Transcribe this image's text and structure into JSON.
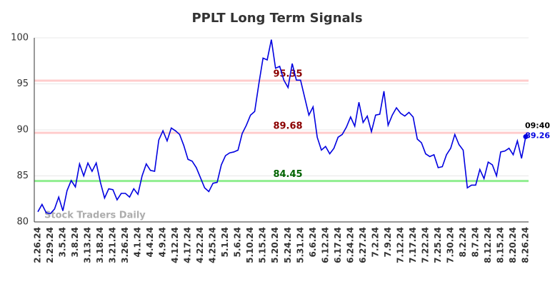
{
  "chart_data": {
    "type": "line",
    "title": "PPLT Long Term Signals",
    "categories": [
      "2.26.24",
      null,
      null,
      "2.29.24",
      null,
      null,
      "3.5.24",
      null,
      null,
      "3.8.24",
      null,
      null,
      "3.13.24",
      null,
      null,
      "3.18.24",
      null,
      null,
      "3.21.24",
      null,
      null,
      "3.26.24",
      null,
      null,
      "4.1.24",
      null,
      null,
      "4.4.24",
      null,
      null,
      "4.9.24",
      null,
      null,
      "4.12.24",
      null,
      null,
      "4.17.24",
      null,
      null,
      "4.22.24",
      null,
      null,
      "4.25.24",
      null,
      null,
      "5.1.24",
      null,
      null,
      "5.6.24",
      null,
      null,
      "5.10.24",
      null,
      null,
      "5.15.24",
      null,
      null,
      "5.20.24",
      null,
      null,
      "5.24.24",
      null,
      null,
      "5.31.24",
      null,
      null,
      "6.6.24",
      null,
      null,
      "6.12.24",
      null,
      null,
      "6.17.24",
      null,
      null,
      "6.24.24",
      null,
      null,
      "6.27.24",
      null,
      null,
      "7.2.24",
      null,
      null,
      "7.9.24",
      null,
      null,
      "7.12.24",
      null,
      null,
      "7.17.24",
      null,
      null,
      "7.22.24",
      null,
      null,
      "7.25.24",
      null,
      null,
      "7.30.24",
      null,
      null,
      "8.2.24",
      null,
      null,
      "8.7.24",
      null,
      null,
      "8.12.24",
      null,
      null,
      "8.15.24",
      null,
      null,
      "8.20.24",
      null,
      null,
      "8.26.24"
    ],
    "series": [
      {
        "name": "PPLT",
        "color": "#0000e0",
        "values": [
          81.1,
          81.9,
          81.0,
          80.9,
          81.4,
          82.7,
          81.2,
          83.4,
          84.5,
          83.8,
          86.3,
          85.0,
          86.4,
          85.5,
          86.4,
          84.3,
          82.6,
          83.6,
          83.5,
          82.4,
          83.1,
          83.1,
          82.7,
          83.6,
          83.0,
          85.0,
          86.3,
          85.6,
          85.5,
          88.9,
          89.9,
          88.8,
          90.2,
          89.9,
          89.5,
          88.3,
          86.8,
          86.6,
          85.9,
          84.8,
          83.7,
          83.3,
          84.2,
          84.3,
          86.2,
          87.2,
          87.5,
          87.6,
          87.8,
          89.6,
          90.5,
          91.6,
          92.0,
          95.0,
          97.8,
          97.6,
          99.8,
          96.7,
          96.9,
          95.4,
          94.6,
          97.2,
          95.4,
          95.4,
          93.5,
          91.6,
          92.5,
          89.2,
          87.8,
          88.2,
          87.4,
          88.0,
          89.2,
          89.5,
          90.3,
          91.4,
          90.4,
          93.0,
          90.8,
          91.5,
          89.8,
          91.6,
          91.7,
          94.2,
          90.5,
          91.6,
          92.4,
          91.8,
          91.5,
          91.9,
          91.4,
          89.0,
          88.6,
          87.4,
          87.1,
          87.3,
          85.9,
          86.0,
          87.3,
          88.0,
          89.5,
          88.4,
          87.8,
          83.7,
          84.0,
          84.0,
          85.7,
          84.7,
          86.5,
          86.2,
          85.0,
          87.6,
          87.7,
          88.0,
          87.3,
          88.8,
          86.9,
          89.26
        ]
      }
    ],
    "ylim": [
      80,
      100
    ],
    "yticks": [
      80,
      85,
      90,
      95,
      100
    ],
    "levels": [
      {
        "value": 95.35,
        "color": "#8b0000",
        "band": "#ffcccc"
      },
      {
        "value": 89.68,
        "color": "#8b0000",
        "band": "#ffcccc"
      },
      {
        "value": 84.45,
        "color": "#006400",
        "band": "#90ee90"
      }
    ],
    "last_time": "09:40",
    "watermark": "Stock Traders Daily"
  }
}
